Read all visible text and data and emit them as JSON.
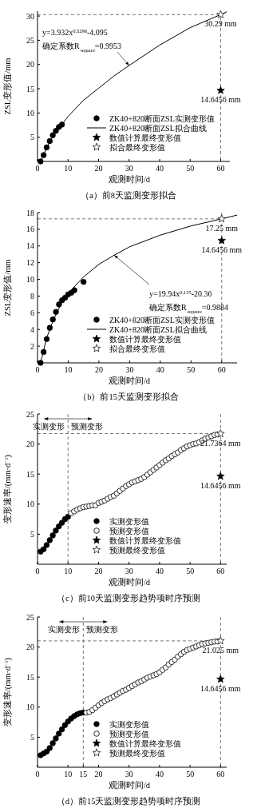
{
  "chart_data": [
    {
      "type": "line",
      "title": "（a）前8天监测变形拟合",
      "xlabel": "观测时间/d",
      "ylabel": "ZSL变形值/mm",
      "xlim": [
        0,
        63
      ],
      "ylim": [
        0,
        31
      ],
      "xticks": [
        0,
        10,
        20,
        30,
        40,
        50,
        60
      ],
      "yticks": [
        5,
        10,
        15,
        20,
        25,
        30
      ],
      "legend": "bottom right",
      "grid": false,
      "series": [
        {
          "name": "ZK40+820断面ZSL实测变形值",
          "type": "scatter",
          "marker": "circle",
          "color": "#000000",
          "x": [
            1,
            2,
            3,
            4,
            5,
            6,
            7,
            8
          ],
          "values": [
            0,
            1.3,
            2.9,
            4.2,
            5.4,
            6.3,
            7.1,
            7.6
          ]
        },
        {
          "name": "ZK40+820断面ZSL拟合曲线",
          "type": "line",
          "marker": "none",
          "color": "#000000",
          "x": [
            1,
            2,
            3,
            4,
            5,
            6,
            8,
            10,
            15,
            20,
            25,
            30,
            40,
            50,
            60,
            62
          ],
          "values": [
            0,
            1.3,
            2.9,
            4.1,
            5.1,
            6.1,
            7.6,
            9.3,
            12.6,
            15.1,
            17.6,
            19.8,
            24.0,
            27.6,
            30.3,
            30.9
          ]
        },
        {
          "name": "数值计算最终变形值",
          "type": "scatter",
          "marker": "star",
          "color": "#000000",
          "x": [
            60
          ],
          "values": [
            14.6456
          ],
          "value_labels": [
            "14.6456 mm"
          ]
        },
        {
          "name": "拟合最终变形值",
          "type": "scatter",
          "marker": "star",
          "color": "#ffffff",
          "x": [
            60
          ],
          "values": [
            30.29
          ],
          "value_labels": [
            "30.29 mm"
          ]
        }
      ],
      "ref_lines": [
        {
          "axis": "y",
          "value": 30.29,
          "color": "#555555",
          "line_style": "dashed"
        },
        {
          "axis": "x",
          "value": 60,
          "color": "#555555",
          "line_style": "dashed"
        }
      ],
      "annotations": [
        "y=3.932x$^{0.5296}$-4.095",
        {
          "text": "确定系数R$_{-square}$=0.9953",
          "x": 30,
          "y": 19.8
        }
      ]
    },
    {
      "type": "line",
      "title": "（b）前15天监测变形拟合",
      "xlabel": "观测时间/d",
      "ylabel": "ZSL变形值/mm",
      "xlim": [
        0,
        65
      ],
      "ylim": [
        0,
        18
      ],
      "xticks": [
        0,
        10,
        20,
        30,
        40,
        50,
        60
      ],
      "yticks": [
        2,
        4,
        6,
        8,
        10,
        12,
        14,
        16,
        18
      ],
      "legend": "bottom right",
      "grid": false,
      "series": [
        {
          "name": "ZK40+820断面ZSL实测变形值",
          "type": "scatter",
          "marker": "circle",
          "color": "#000000",
          "x": [
            1,
            2,
            3,
            4,
            5,
            6,
            7,
            8,
            9,
            10,
            11,
            12,
            15
          ],
          "values": [
            0,
            1.3,
            2.85,
            4.2,
            5.2,
            6.1,
            7.0,
            7.5,
            7.8,
            8.2,
            8.4,
            8.7,
            9.7
          ]
        },
        {
          "name": "ZK40+820断面ZSL拟合曲线",
          "type": "line",
          "marker": "none",
          "color": "#000000",
          "x": [
            1,
            2,
            3,
            5,
            8,
            10,
            15,
            20,
            25,
            30,
            40,
            50,
            60,
            65
          ],
          "values": [
            0,
            1.5,
            3.0,
            5.0,
            7.3,
            8.3,
            10.3,
            11.8,
            12.9,
            13.9,
            15.3,
            16.4,
            17.25,
            17.7
          ]
        },
        {
          "name": "数值计算最终变形值",
          "type": "scatter",
          "marker": "star",
          "color": "#000000",
          "x": [
            60
          ],
          "values": [
            14.6456
          ],
          "value_labels": [
            "14.6456 mm"
          ]
        },
        {
          "name": "拟合最终变形值",
          "type": "scatter",
          "marker": "star",
          "color": "#ffffff",
          "x": [
            60
          ],
          "values": [
            17.25
          ],
          "value_labels": [
            "17.25 mm"
          ]
        }
      ],
      "ref_lines": [
        {
          "axis": "y",
          "value": 17.25,
          "color": "#555555",
          "line_style": "dashed"
        },
        {
          "axis": "x",
          "value": 60,
          "color": "#555555",
          "line_style": "dashed"
        }
      ],
      "annotations": [
        {
          "text": "y=19.94x$^{0.155}$-20.36",
          "x": 25,
          "y": 12.9
        },
        "确定系数R$_{-square}$=0.9884"
      ]
    },
    {
      "type": "line",
      "title": "（c）前10天监测变形趋势项时序预测",
      "xlabel": "观测时间/d",
      "ylabel": "变形速率/(mm·d$^{−1}$)",
      "xlim": [
        0,
        62
      ],
      "ylim": [
        0,
        25
      ],
      "xticks": [
        0,
        10,
        20,
        30,
        40,
        50,
        60
      ],
      "yticks": [
        5,
        10,
        15,
        20,
        25
      ],
      "legend": "bottom right",
      "grid": false,
      "series": [
        {
          "name": "实测变形值",
          "type": "scatter",
          "marker": "circle",
          "color": "#000000",
          "x": [
            1,
            2,
            3,
            4,
            5,
            6,
            7,
            8,
            9,
            10
          ],
          "values": [
            2.1,
            2.5,
            3.2,
            4.0,
            4.8,
            5.6,
            6.3,
            6.9,
            7.5,
            7.9
          ]
        },
        {
          "name": "预测变形值",
          "type": "scatter",
          "marker": "circle",
          "color": "#ffffff",
          "x": [
            11,
            12,
            13,
            14,
            15,
            16,
            17,
            18,
            19,
            20,
            21,
            22,
            23,
            24,
            25,
            26,
            27,
            28,
            29,
            30,
            31,
            32,
            33,
            34,
            35,
            36,
            37,
            38,
            39,
            40,
            41,
            42,
            43,
            44,
            45,
            46,
            47,
            48,
            49,
            50,
            51,
            52,
            53,
            54,
            55,
            56,
            57,
            58,
            59
          ],
          "values": [
            8.5,
            8.8,
            9.1,
            9.3,
            9.5,
            9.6,
            9.7,
            9.8,
            9.8,
            10.2,
            10.4,
            10.6,
            10.9,
            11.2,
            11.4,
            11.8,
            12.2,
            12.6,
            13.0,
            13.3,
            13.6,
            13.8,
            14.0,
            14.2,
            14.5,
            14.9,
            15.3,
            15.7,
            16.1,
            16.5,
            16.9,
            17.3,
            17.6,
            18.0,
            18.3,
            18.6,
            19.0,
            19.3,
            19.6,
            19.8,
            20.0,
            20.1,
            20.3,
            20.6,
            20.9,
            21.1,
            21.3,
            21.5,
            21.6
          ]
        },
        {
          "name": "数值计算最终变形值",
          "type": "scatter",
          "marker": "star",
          "color": "#000000",
          "x": [
            60
          ],
          "values": [
            14.6456
          ],
          "value_labels": [
            "14.6456 mm"
          ]
        },
        {
          "name": "预测最终变形值",
          "type": "scatter",
          "marker": "star",
          "color": "#ffffff",
          "x": [
            60
          ],
          "values": [
            21.7364
          ],
          "value_labels": [
            "21.7364 mm"
          ]
        }
      ],
      "ref_lines": [
        {
          "axis": "y",
          "value": 21.7364,
          "color": "#555555",
          "line_style": "dashed"
        },
        {
          "axis": "x",
          "value": 60,
          "color": "#555555",
          "line_style": "dashed"
        },
        {
          "axis": "x",
          "value": 10,
          "color": "#555555",
          "line_style": "dashed"
        }
      ],
      "annotations": [
        "实测变形",
        "预测变形"
      ]
    },
    {
      "type": "line",
      "title": "（d）前15天监测变形趋势项时序预测",
      "xlabel": "观测时间/d",
      "ylabel": "变形速率/(mm·d$^{−1}$)",
      "xlim": [
        0,
        62
      ],
      "ylim": [
        0,
        25
      ],
      "xticks": [
        0,
        10,
        15,
        20,
        30,
        40,
        50,
        60
      ],
      "yticks": [
        5,
        10,
        15,
        20,
        25
      ],
      "legend": "bottom right",
      "grid": false,
      "series": [
        {
          "name": "实测变形值",
          "type": "scatter",
          "marker": "circle",
          "color": "#000000",
          "x": [
            1,
            2,
            3,
            4,
            5,
            6,
            7,
            8,
            9,
            10,
            11,
            12,
            13,
            14,
            15
          ],
          "values": [
            2.0,
            2.3,
            2.6,
            3.2,
            4.0,
            4.8,
            5.6,
            6.3,
            7.0,
            7.6,
            8.1,
            8.5,
            8.8,
            9.0,
            9.1
          ]
        },
        {
          "name": "预测变形值",
          "type": "scatter",
          "marker": "circle",
          "color": "#ffffff",
          "x": [
            16,
            17,
            18,
            19,
            20,
            21,
            22,
            23,
            24,
            25,
            26,
            27,
            28,
            29,
            30,
            31,
            32,
            33,
            34,
            35,
            36,
            37,
            38,
            39,
            40,
            41,
            42,
            43,
            44,
            45,
            46,
            47,
            48,
            49,
            50,
            51,
            52,
            53,
            54,
            55,
            56,
            57,
            58,
            59
          ],
          "values": [
            9.1,
            9.2,
            9.5,
            9.9,
            10.3,
            10.7,
            11.0,
            11.3,
            11.5,
            11.8,
            12.1,
            12.4,
            12.7,
            12.9,
            13.2,
            13.5,
            13.8,
            14.1,
            14.3,
            14.6,
            14.9,
            15.1,
            15.3,
            15.5,
            15.8,
            16.2,
            16.6,
            17.1,
            17.5,
            17.9,
            18.4,
            18.8,
            19.2,
            19.5,
            19.7,
            19.9,
            20.1,
            20.3,
            20.5,
            20.6,
            20.7,
            20.8,
            20.9,
            20.95
          ]
        },
        {
          "name": "数值计算最终变形值",
          "type": "scatter",
          "marker": "star",
          "color": "#000000",
          "x": [
            60
          ],
          "values": [
            14.6456
          ],
          "value_labels": [
            "14.6456 mm"
          ]
        },
        {
          "name": "预测最终变形值",
          "type": "scatter",
          "marker": "star",
          "color": "#ffffff",
          "x": [
            60
          ],
          "values": [
            21.025
          ],
          "value_labels": [
            "21.025 mm"
          ]
        }
      ],
      "ref_lines": [
        {
          "axis": "y",
          "value": 21.025,
          "color": "#555555",
          "line_style": "dashed"
        },
        {
          "axis": "x",
          "value": 60,
          "color": "#555555",
          "line_style": "dashed"
        },
        {
          "axis": "x",
          "value": 15,
          "color": "#555555",
          "line_style": "dashed"
        }
      ],
      "annotations": [
        "实测变形",
        "预测变形"
      ]
    }
  ]
}
